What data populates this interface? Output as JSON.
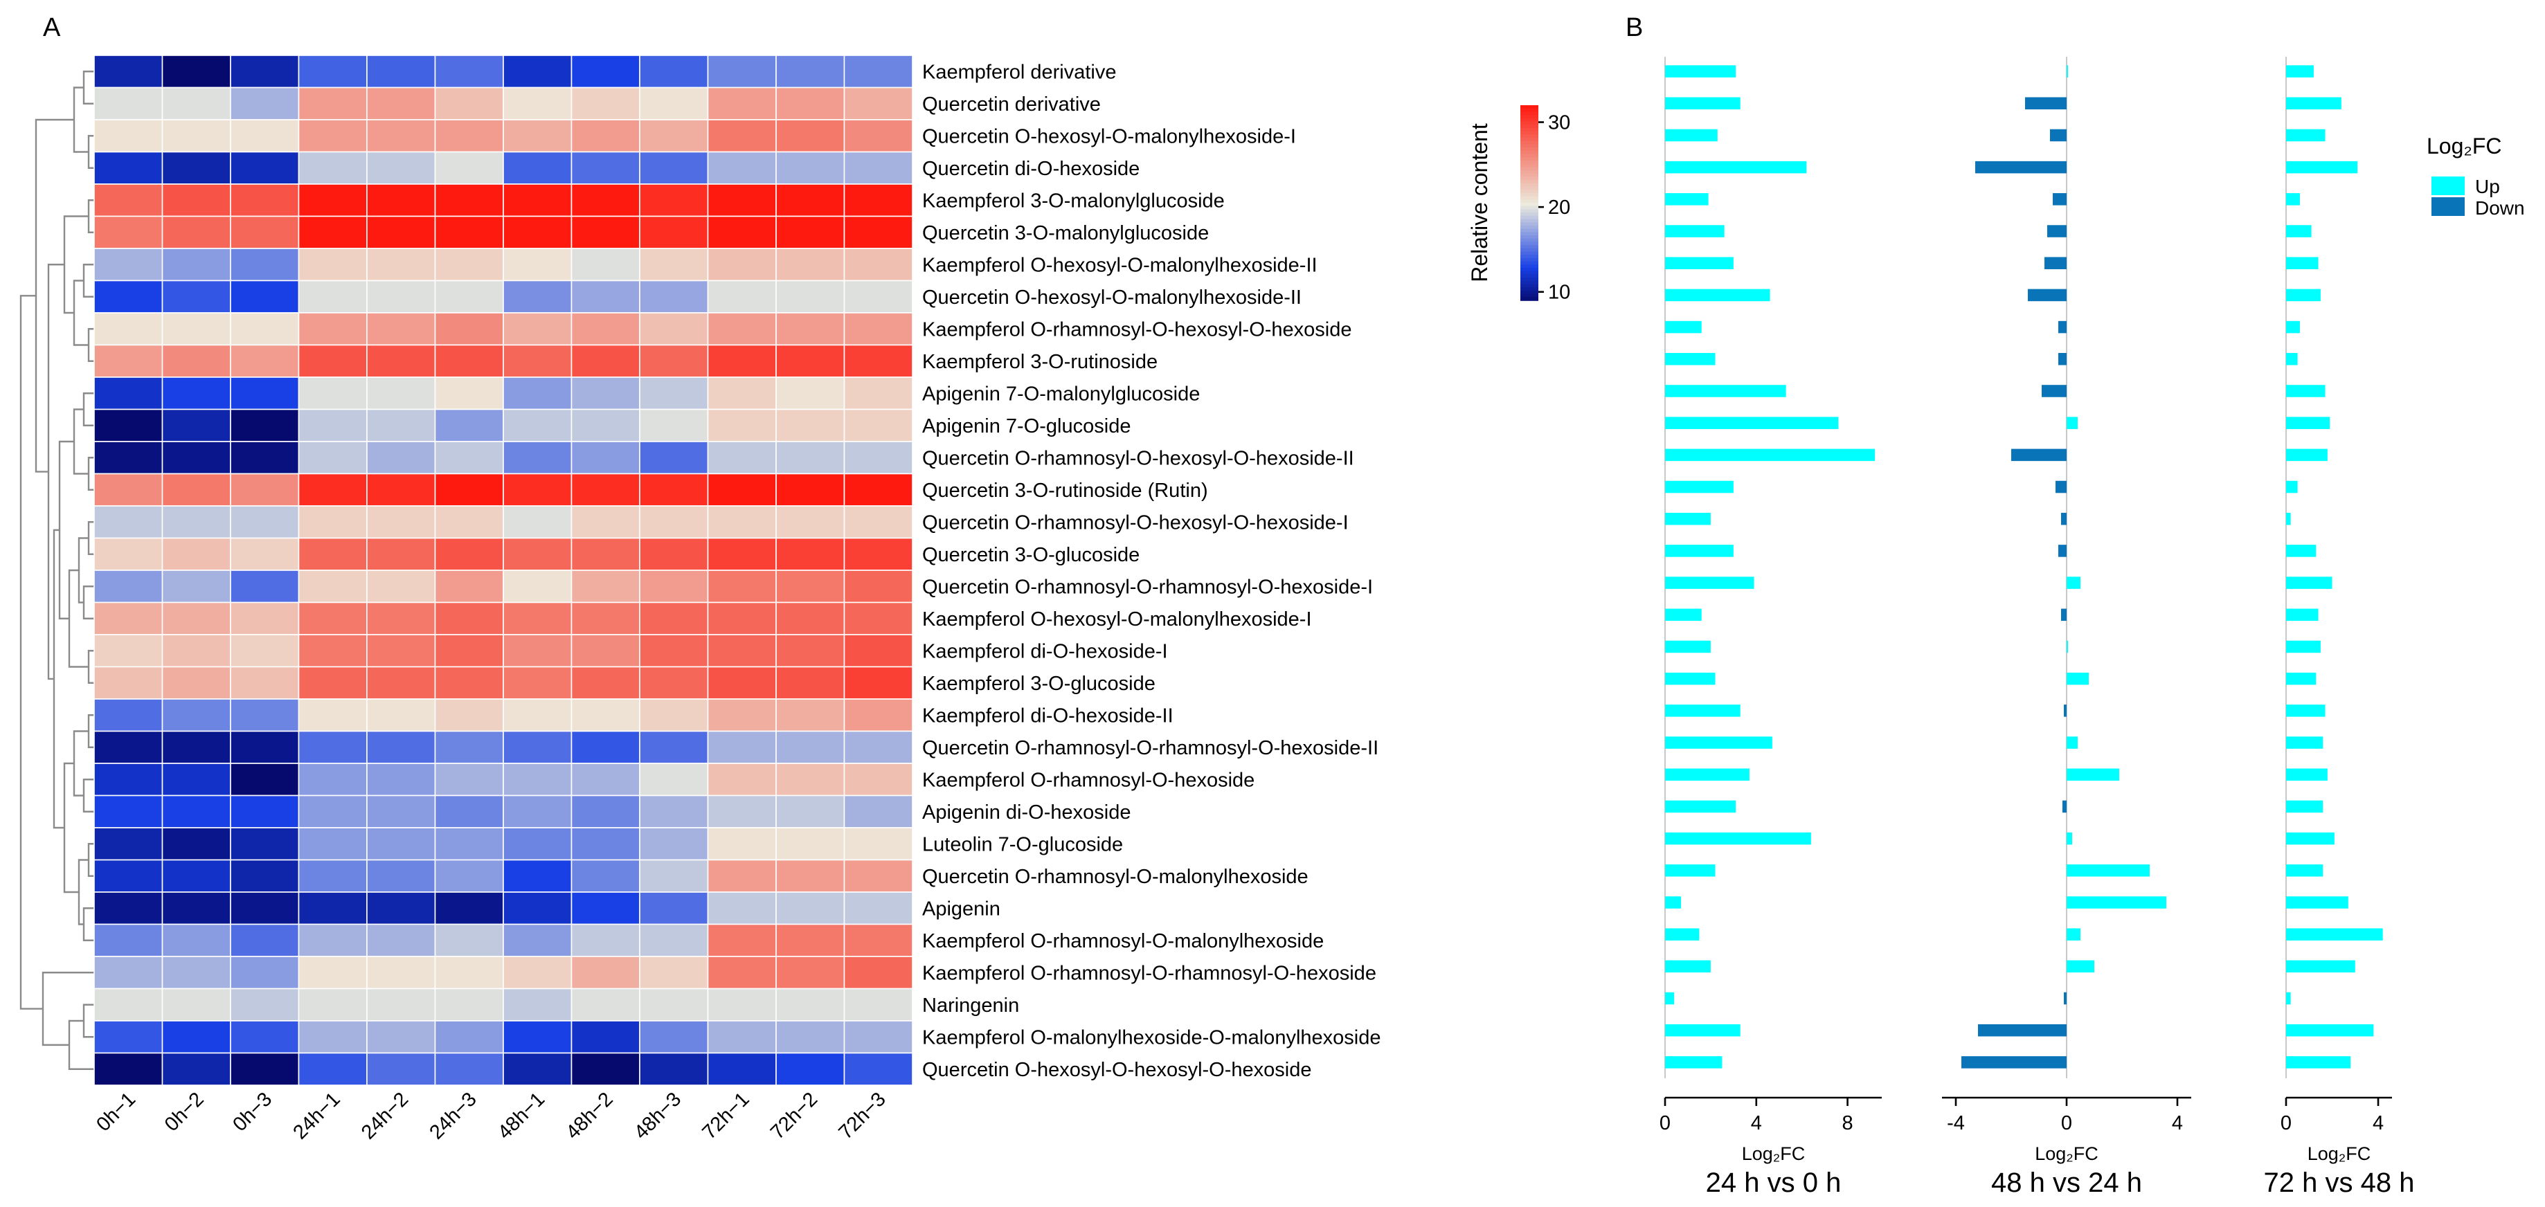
{
  "panel_labels": {
    "a": "A",
    "b": "B"
  },
  "colors": {
    "up": "#00FFFF",
    "down": "#0A74B8",
    "heat_low": "#060A6E",
    "heat_mid": "#ECEBDD",
    "heat_high": "#FF1A10"
  },
  "chart_data": [
    {
      "type": "heatmap",
      "x_labels": [
        "0h−1",
        "0h−2",
        "0h−3",
        "24h−1",
        "24h−2",
        "24h−3",
        "48h−1",
        "48h−2",
        "48h−3",
        "72h−1",
        "72h−2",
        "72h−3"
      ],
      "rows": [
        {
          "name": "Kaempferol derivative",
          "values": [
            11,
            8.5,
            11,
            14.5,
            14.5,
            15,
            12,
            13,
            14.5,
            16,
            16,
            16
          ]
        },
        {
          "name": "Quercetin derivative",
          "values": [
            20,
            20,
            18,
            25,
            25,
            23,
            21,
            22,
            21,
            25,
            25,
            24
          ]
        },
        {
          "name": "Quercetin O-hexosyl-O-malonylhexoside-I",
          "values": [
            21,
            21,
            21,
            25,
            25,
            25,
            24,
            25,
            24,
            27,
            27,
            26
          ]
        },
        {
          "name": "Quercetin di-O-hexoside",
          "values": [
            12,
            11,
            11.5,
            19,
            19,
            20,
            14.5,
            15,
            15,
            18,
            18,
            18
          ]
        },
        {
          "name": "Kaempferol 3-O-malonylglucoside",
          "values": [
            28,
            29,
            29,
            32,
            32,
            32,
            32,
            32,
            31,
            32,
            32,
            32
          ]
        },
        {
          "name": "Quercetin 3-O-malonylglucoside",
          "values": [
            27,
            28,
            28,
            32,
            32,
            32,
            32,
            32,
            31,
            32,
            32,
            32
          ]
        },
        {
          "name": "Kaempferol O-hexosyl-O-malonylhexoside-II",
          "values": [
            18,
            17,
            16,
            22,
            22,
            22,
            21,
            20,
            22,
            23,
            23,
            23
          ]
        },
        {
          "name": "Quercetin O-hexosyl-O-malonylhexoside-II",
          "values": [
            13,
            14,
            13,
            20,
            20,
            20,
            16.5,
            17.5,
            17.5,
            20,
            20,
            20
          ]
        },
        {
          "name": "Kaempferol O-rhamnosyl-O-hexosyl-O-hexoside",
          "values": [
            21,
            21,
            21,
            25,
            25,
            26,
            24,
            25,
            23,
            25,
            25,
            25
          ]
        },
        {
          "name": "Kaempferol 3-O-rutinoside",
          "values": [
            25,
            26,
            25,
            29,
            29,
            29,
            28,
            29,
            28,
            30,
            30,
            30
          ]
        },
        {
          "name": "Apigenin 7-O-malonylglucoside",
          "values": [
            12,
            13,
            13,
            20,
            20,
            21,
            17,
            18,
            19,
            22,
            21,
            22
          ]
        },
        {
          "name": "Apigenin 7-O-glucoside",
          "values": [
            9,
            11,
            8.5,
            19,
            19,
            17,
            19,
            19,
            20,
            22,
            22,
            22
          ]
        },
        {
          "name": "Quercetin O-rhamnosyl-O-hexosyl-O-hexoside-II",
          "values": [
            9.5,
            10,
            9.5,
            19,
            18,
            19,
            16,
            17,
            15,
            19,
            19,
            19
          ]
        },
        {
          "name": "Quercetin 3-O-rutinoside (Rutin)",
          "values": [
            26,
            27,
            26,
            31,
            31,
            32,
            31,
            31,
            31,
            32,
            32,
            32
          ]
        },
        {
          "name": "Quercetin O-rhamnosyl-O-hexosyl-O-hexoside-I",
          "values": [
            19,
            19,
            19,
            22,
            22,
            22,
            20,
            22,
            22,
            22,
            22,
            22
          ]
        },
        {
          "name": "Quercetin 3-O-glucoside",
          "values": [
            22,
            23,
            22,
            28,
            28,
            29,
            28,
            28,
            29,
            30,
            30,
            30
          ]
        },
        {
          "name": "Quercetin O-rhamnosyl-O-rhamnosyl-O-hexoside-I",
          "values": [
            17,
            18,
            15,
            22,
            22,
            25,
            21,
            24,
            25,
            27,
            27,
            28
          ]
        },
        {
          "name": "Kaempferol O-hexosyl-O-malonylhexoside-I",
          "values": [
            24,
            24,
            23,
            27,
            27,
            28,
            27,
            27,
            28,
            28,
            28,
            28
          ]
        },
        {
          "name": "Kaempferol di-O-hexoside-I",
          "values": [
            22,
            23,
            22,
            27,
            27,
            28,
            26,
            26,
            28,
            28,
            28,
            29
          ]
        },
        {
          "name": "Kaempferol 3-O-glucoside",
          "values": [
            23,
            24,
            23,
            28,
            28,
            28,
            27,
            28,
            28,
            29,
            29,
            30
          ]
        },
        {
          "name": "Kaempferol di-O-hexoside-II",
          "values": [
            15,
            16,
            16,
            21,
            21,
            22,
            21,
            21,
            22,
            24,
            24,
            25
          ]
        },
        {
          "name": "Quercetin O-rhamnosyl-O-rhamnosyl-O-hexoside-II",
          "values": [
            10,
            10,
            10,
            15,
            15,
            16,
            15,
            14,
            15,
            18,
            18,
            18
          ]
        },
        {
          "name": "Kaempferol O-rhamnosyl-O-hexoside",
          "values": [
            12,
            12,
            8,
            17,
            17,
            18,
            18,
            18,
            20,
            23,
            23,
            23
          ]
        },
        {
          "name": "Apigenin di-O-hexoside",
          "values": [
            13,
            13,
            13,
            17,
            17,
            16,
            17,
            16,
            18,
            19,
            19,
            18
          ]
        },
        {
          "name": "Luteolin 7-O-glucoside",
          "values": [
            11,
            10,
            11,
            17,
            17,
            17,
            16,
            16,
            18,
            21,
            21,
            21
          ]
        },
        {
          "name": "Quercetin O-rhamnosyl-O-malonylhexoside",
          "values": [
            12,
            12,
            11,
            16,
            16,
            17,
            13,
            16,
            19,
            25,
            25,
            25
          ]
        },
        {
          "name": "Apigenin",
          "values": [
            10,
            10,
            10,
            11,
            11,
            10,
            12,
            13,
            15,
            19,
            19,
            19
          ]
        },
        {
          "name": "Kaempferol O-rhamnosyl-O-malonylhexoside",
          "values": [
            16,
            17,
            15,
            18,
            18,
            19,
            17,
            19,
            19,
            27,
            27,
            27
          ]
        },
        {
          "name": "Kaempferol O-rhamnosyl-O-rhamnosyl-O-hexoside",
          "values": [
            18,
            18,
            17,
            21,
            21,
            21,
            22,
            24,
            22,
            27,
            27,
            28
          ]
        },
        {
          "name": "Naringenin",
          "values": [
            20,
            20,
            19,
            20,
            20,
            20,
            19,
            20,
            20,
            20,
            20,
            20
          ]
        },
        {
          "name": "Kaempferol O-malonylhexoside-O-malonylhexoside",
          "values": [
            14,
            13,
            14,
            18,
            18,
            17,
            13,
            12,
            16,
            18,
            18,
            18
          ]
        },
        {
          "name": "Quercetin O-hexosyl-O-hexosyl-O-hexoside",
          "values": [
            9,
            11,
            9,
            14,
            15,
            15,
            11,
            8.5,
            11,
            12,
            13,
            14
          ]
        }
      ],
      "colorbar": {
        "label": "Relative content",
        "ticks": [
          10,
          20,
          30
        ],
        "range": [
          9,
          32
        ]
      }
    },
    {
      "type": "bar",
      "orientation": "horizontal",
      "title": "24 h vs 0 h",
      "xlabel": "Log₂FC",
      "xlim": [
        0,
        9.5
      ],
      "xticks": [
        0,
        4,
        8
      ],
      "values": [
        3.1,
        3.3,
        2.3,
        6.2,
        1.9,
        2.6,
        3.0,
        4.6,
        1.6,
        2.2,
        5.3,
        7.6,
        9.2,
        3.0,
        2.0,
        3.0,
        3.9,
        1.6,
        2.0,
        2.2,
        3.3,
        4.7,
        3.7,
        3.1,
        6.4,
        2.2,
        0.7,
        1.5,
        2.0,
        0.4,
        3.3,
        2.5
      ]
    },
    {
      "type": "bar",
      "orientation": "horizontal",
      "title": "48 h vs 24 h",
      "xlabel": "Log₂FC",
      "xlim": [
        -4.5,
        4.5
      ],
      "xticks": [
        -4,
        0,
        4
      ],
      "values": [
        0.05,
        -1.5,
        -0.6,
        -3.3,
        -0.5,
        -0.7,
        -0.8,
        -1.4,
        -0.3,
        -0.3,
        -0.9,
        0.4,
        -2.0,
        -0.4,
        -0.2,
        -0.3,
        0.5,
        -0.2,
        0.05,
        0.8,
        -0.1,
        0.4,
        1.9,
        -0.15,
        0.2,
        3.0,
        3.6,
        0.5,
        1.0,
        -0.1,
        -3.2,
        -3.8
      ]
    },
    {
      "type": "bar",
      "orientation": "horizontal",
      "title": "72 h vs 48 h",
      "xlabel": "Log₂FC",
      "xlim": [
        0,
        4.6
      ],
      "xticks": [
        0,
        4
      ],
      "values": [
        1.2,
        2.4,
        1.7,
        3.1,
        0.6,
        1.1,
        1.4,
        1.5,
        0.6,
        0.5,
        1.7,
        1.9,
        1.8,
        0.5,
        0.2,
        1.3,
        2.0,
        1.4,
        1.5,
        1.3,
        1.7,
        1.6,
        1.8,
        1.6,
        2.1,
        1.6,
        2.7,
        4.2,
        3.0,
        0.2,
        3.8,
        2.8
      ]
    }
  ],
  "legend": {
    "title": "Log₂FC",
    "items": [
      "Up",
      "Down"
    ]
  }
}
